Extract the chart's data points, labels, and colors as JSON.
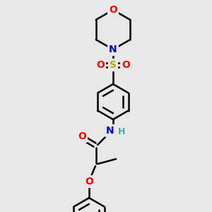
{
  "bg_color": "#e8e8e8",
  "bond_color": "#000000",
  "bond_width": 1.8,
  "atom_colors": {
    "O": "#ff0000",
    "N": "#0000cc",
    "S": "#bbaa00",
    "H": "#44aaaa"
  },
  "font_size": 10,
  "figsize": [
    3.0,
    3.0
  ],
  "dpi": 100
}
